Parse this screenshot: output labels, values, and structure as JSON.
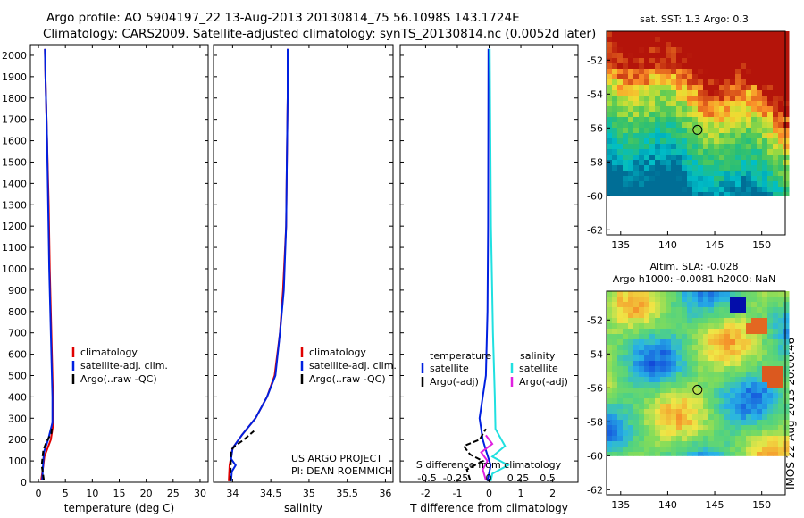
{
  "header": {
    "line1": "Argo profile: AO 5904197_22 13-Aug-2013 20130814_75 56.1098S 143.1724E",
    "line2": "Climatology: CARS2009. Satellite-adjusted climatology: synTS_20130814.nc (0.0052d later)"
  },
  "side_label": "IMOS 22-Aug-2013 20:00:46",
  "colors": {
    "climatology": "#e00000",
    "satellite": "#0020e0",
    "argo": "#000000",
    "sal_satellite": "#20e0e0",
    "sal_argo": "#e020e0"
  },
  "chart_data": [
    {
      "type": "line",
      "id": "temperature",
      "xlabel": "temperature (deg C)",
      "ylabel": "",
      "xlim": [
        -1.5,
        31.5
      ],
      "ylim": [
        2050,
        0
      ],
      "xticks": [
        0,
        5,
        10,
        15,
        20,
        25,
        30
      ],
      "yticks": [
        0,
        100,
        200,
        300,
        400,
        500,
        600,
        700,
        800,
        900,
        1000,
        1100,
        1200,
        1300,
        1400,
        1500,
        1600,
        1700,
        1800,
        1900,
        2000
      ],
      "legend": [
        "climatology",
        "satellite-adj. clim.",
        "Argo(..raw -QC)"
      ],
      "series": [
        {
          "name": "climatology",
          "x": [
            0.5,
            0.8,
            1.1,
            2.3,
            2.8,
            2.7,
            2.5,
            2.3,
            2.1,
            1.9,
            1.6,
            1.3,
            1.2
          ],
          "y": [
            10,
            60,
            120,
            200,
            280,
            400,
            600,
            800,
            1000,
            1300,
            1600,
            1900,
            2030
          ]
        },
        {
          "name": "satellite-adj. clim.",
          "x": [
            0.7,
            0.8,
            1.0,
            1.8,
            2.6,
            2.6,
            2.4,
            2.2,
            2.0,
            1.8,
            1.6,
            1.3,
            1.2
          ],
          "y": [
            10,
            60,
            140,
            200,
            280,
            400,
            600,
            800,
            1000,
            1300,
            1600,
            1900,
            2030
          ]
        },
        {
          "name": "Argo(..raw -QC)",
          "x": [
            1.0,
            0.6,
            0.9,
            1.5,
            2.4,
            2.5
          ],
          "y": [
            10,
            80,
            150,
            190,
            230,
            260
          ]
        }
      ]
    },
    {
      "type": "line",
      "id": "salinity",
      "xlabel": "salinity",
      "ylabel": "",
      "xlim": [
        33.75,
        36.1
      ],
      "ylim": [
        2050,
        0
      ],
      "xticks": [
        34,
        34.5,
        35,
        35.5,
        36
      ],
      "legend": [
        "climatology",
        "satellite-adj. clim.",
        "Argo(..raw -QC)"
      ],
      "annotation": [
        "US ARGO PROJECT",
        "PI: DEAN ROEMMICH"
      ],
      "series": [
        {
          "name": "climatology",
          "x": [
            33.95,
            33.96,
            34.0,
            34.12,
            34.3,
            34.45,
            34.55,
            34.62,
            34.66,
            34.7,
            34.71,
            34.72,
            34.72
          ],
          "y": [
            5,
            80,
            160,
            220,
            300,
            400,
            500,
            700,
            900,
            1200,
            1500,
            1800,
            2030
          ]
        },
        {
          "name": "satellite-adj. clim.",
          "x": [
            33.98,
            33.99,
            34.04,
            33.98,
            34.0,
            34.12,
            34.3,
            34.45,
            34.56,
            34.62,
            34.67,
            34.7,
            34.71,
            34.72,
            34.72
          ],
          "y": [
            5,
            50,
            80,
            110,
            160,
            220,
            300,
            400,
            500,
            700,
            900,
            1200,
            1500,
            1800,
            2030
          ]
        },
        {
          "name": "Argo(..raw -QC)",
          "x": [
            33.97,
            33.98,
            34.03,
            34.15,
            34.28
          ],
          "y": [
            5,
            150,
            170,
            200,
            240
          ]
        }
      ]
    },
    {
      "type": "line",
      "id": "difference",
      "xlabel": "T difference from climatology",
      "xlabel2": "S difference from climatology",
      "xlim": [
        -2.8,
        2.8
      ],
      "ylim": [
        2050,
        0
      ],
      "xticks_bottom": [
        -2,
        -1,
        0,
        1,
        2
      ],
      "xticks_top": [
        -0.5,
        -0.25,
        0,
        0.25,
        0.5
      ],
      "xticklabels_top": [
        "-0.5",
        "-0.25",
        "0",
        "0.25",
        "0.5"
      ],
      "legend_titles": [
        "temperature",
        "salinity"
      ],
      "legend": [
        "satellite",
        "Argo(-adj)",
        "satellite",
        "Argo(-adj)"
      ],
      "series": [
        {
          "name": "T satellite",
          "x": [
            -0.05,
            0.05,
            -0.1,
            -0.2,
            -0.3,
            -0.1,
            -0.05,
            -0.03,
            -0.02
          ],
          "y": [
            5,
            80,
            150,
            200,
            300,
            500,
            800,
            1200,
            2030
          ]
        },
        {
          "name": "T Argo(-adj)",
          "x": [
            -0.6,
            -0.7,
            -0.2,
            -0.6,
            -0.8,
            -0.3,
            -0.1
          ],
          "y": [
            10,
            60,
            100,
            130,
            170,
            200,
            250
          ]
        },
        {
          "name": "S satellite",
          "x": [
            0.05,
            0.1,
            0.6,
            0.1,
            0.5,
            0.2,
            0.18,
            0.12,
            0.06,
            0.02
          ],
          "y": [
            5,
            40,
            80,
            120,
            170,
            250,
            400,
            700,
            1200,
            2030
          ]
        },
        {
          "name": "S Argo(-adj)",
          "x": [
            -0.1,
            -0.2,
            -0.05,
            -0.25,
            0.1,
            -0.1
          ],
          "y": [
            10,
            60,
            100,
            140,
            180,
            220
          ]
        }
      ]
    },
    {
      "type": "heatmap",
      "id": "sst",
      "title": "sat. SST: 1.3 Argo: 0.3",
      "xlim": [
        133.5,
        152.5
      ],
      "ylim": [
        -62.3,
        -50.3
      ],
      "xticks": [
        135,
        140,
        145,
        150
      ],
      "yticks": [
        -52,
        -54,
        -56,
        -58,
        -60,
        -62
      ],
      "argo_position": {
        "lon": 143.17,
        "lat": -56.11
      }
    },
    {
      "type": "heatmap",
      "id": "sla",
      "title": "Altim. SLA: -0.028",
      "title2": "Argo h1000: -0.0081 h2000: NaN",
      "xlim": [
        133.5,
        152.5
      ],
      "ylim": [
        -62.3,
        -50.3
      ],
      "xticks": [
        135,
        140,
        145,
        150
      ],
      "yticks": [
        -52,
        -54,
        -56,
        -58,
        -60,
        -62
      ],
      "argo_position": {
        "lon": 143.17,
        "lat": -56.11
      }
    }
  ]
}
